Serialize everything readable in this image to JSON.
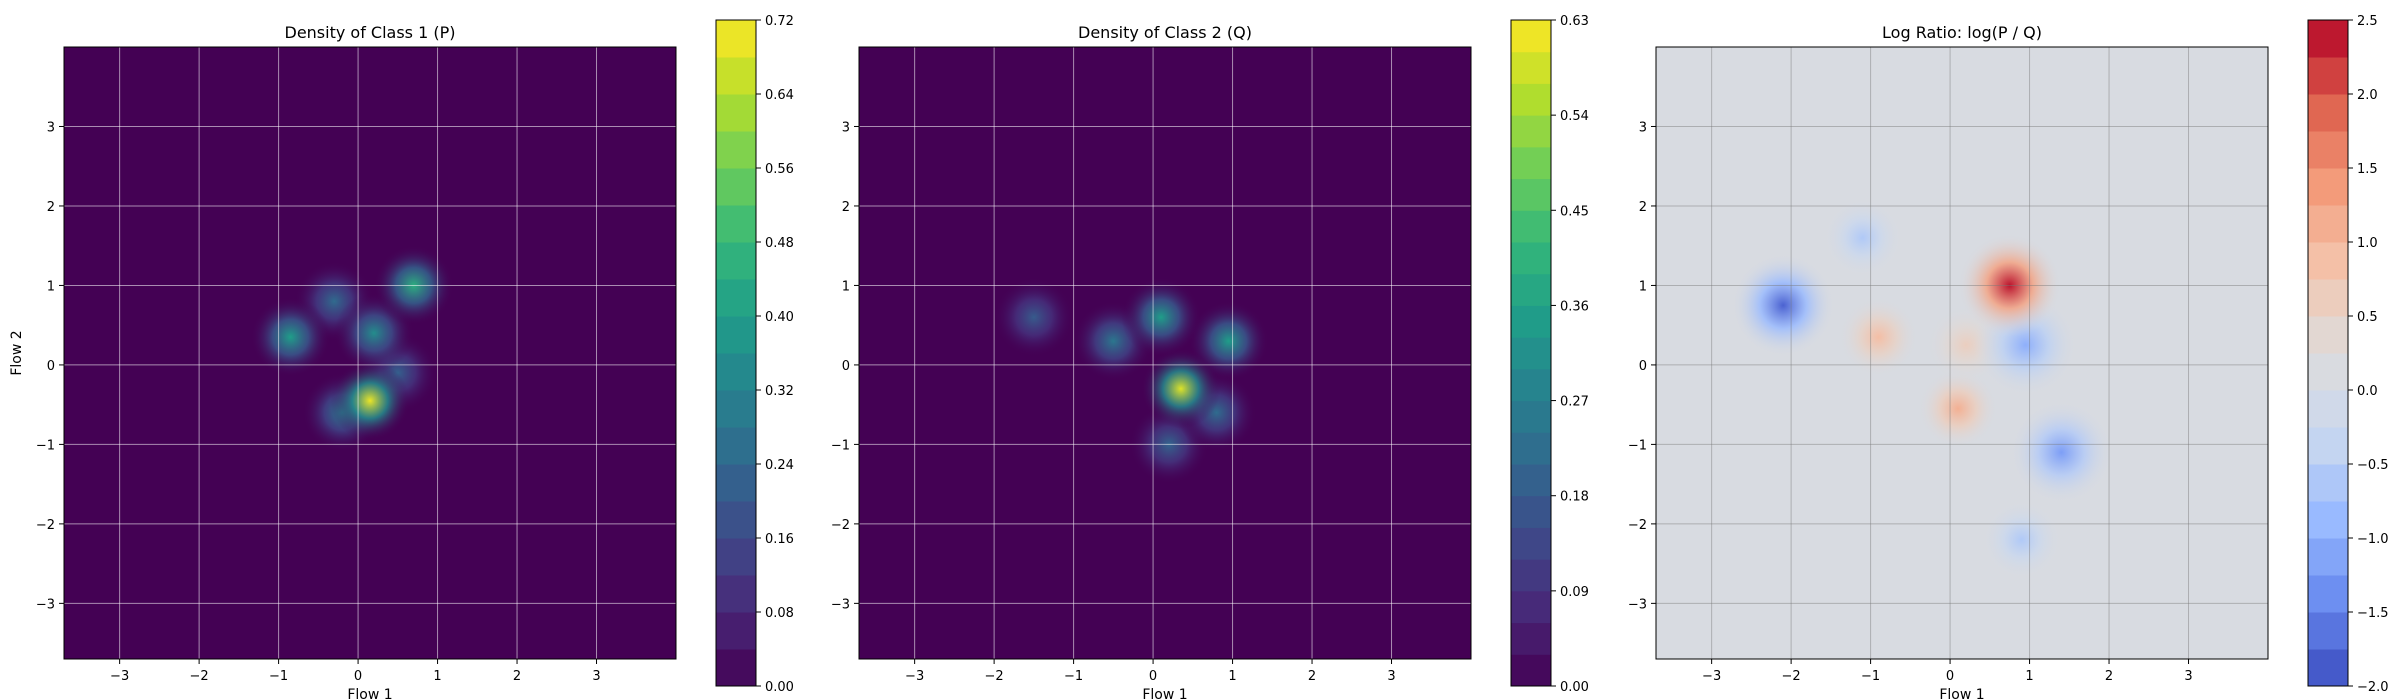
{
  "chart_data": [
    {
      "type": "heatmap",
      "title": "Density of Class 1 (P)",
      "xlabel": "Flow 1",
      "ylabel": "Flow 2",
      "xlim": [
        -3.7,
        4.0
      ],
      "ylim": [
        -3.7,
        4.0
      ],
      "xticks": [
        -3,
        -2,
        -1,
        0,
        1,
        2,
        3
      ],
      "yticks": [
        -3,
        -2,
        -1,
        0,
        1,
        2,
        3
      ],
      "grid": true,
      "colormap": "viridis",
      "colorbar": {
        "min": 0.0,
        "max": 0.72,
        "levels": 18,
        "ticks": [
          0.0,
          0.08,
          0.16,
          0.24,
          0.32,
          0.4,
          0.48,
          0.56,
          0.64,
          0.72
        ]
      },
      "background_value": 0.0,
      "peaks": [
        {
          "x": 0.15,
          "y": -0.45,
          "value": 0.7
        },
        {
          "x": 0.7,
          "y": 1.0,
          "value": 0.45
        },
        {
          "x": -0.85,
          "y": 0.35,
          "value": 0.4
        },
        {
          "x": 0.2,
          "y": 0.4,
          "value": 0.35
        },
        {
          "x": -0.3,
          "y": 0.8,
          "value": 0.25
        },
        {
          "x": -0.2,
          "y": -0.6,
          "value": 0.3
        },
        {
          "x": 0.5,
          "y": -0.1,
          "value": 0.22
        }
      ]
    },
    {
      "type": "heatmap",
      "title": "Density of Class 2 (Q)",
      "xlabel": "Flow 1",
      "ylabel": "",
      "xlim": [
        -3.7,
        4.0
      ],
      "ylim": [
        -3.7,
        4.0
      ],
      "xticks": [
        -3,
        -2,
        -1,
        0,
        1,
        2,
        3
      ],
      "yticks": [
        -3,
        -2,
        -1,
        0,
        1,
        2,
        3
      ],
      "grid": true,
      "colormap": "viridis",
      "colorbar": {
        "min": 0.0,
        "max": 0.63,
        "levels": 21,
        "ticks": [
          0.0,
          0.09,
          0.18,
          0.27,
          0.36,
          0.45,
          0.54,
          0.63
        ]
      },
      "background_value": 0.0,
      "peaks": [
        {
          "x": 0.35,
          "y": -0.3,
          "value": 0.6
        },
        {
          "x": 0.95,
          "y": 0.3,
          "value": 0.35
        },
        {
          "x": 0.1,
          "y": 0.6,
          "value": 0.35
        },
        {
          "x": -0.5,
          "y": 0.3,
          "value": 0.25
        },
        {
          "x": -1.5,
          "y": 0.6,
          "value": 0.18
        },
        {
          "x": 0.2,
          "y": -1.0,
          "value": 0.2
        },
        {
          "x": 0.8,
          "y": -0.6,
          "value": 0.22
        }
      ]
    },
    {
      "type": "heatmap",
      "title": "Log Ratio: log(P / Q)",
      "xlabel": "Flow 1",
      "ylabel": "",
      "xlim": [
        -3.7,
        4.0
      ],
      "ylim": [
        -3.7,
        4.0
      ],
      "xticks": [
        -3,
        -2,
        -1,
        0,
        1,
        2,
        3
      ],
      "yticks": [
        -3,
        -2,
        -1,
        0,
        1,
        2,
        3
      ],
      "grid": true,
      "colormap": "coolwarm",
      "colorbar": {
        "min": -2.0,
        "max": 2.5,
        "levels": 18,
        "ticks": [
          -2.0,
          -1.5,
          -1.0,
          -0.5,
          0.0,
          0.5,
          1.0,
          1.5,
          2.0,
          2.5
        ]
      },
      "background_value": 0.1,
      "peaks": [
        {
          "x": 0.75,
          "y": 1.0,
          "value": 2.4
        },
        {
          "x": 0.1,
          "y": -0.55,
          "value": 1.1
        },
        {
          "x": -0.9,
          "y": 0.35,
          "value": 0.9
        },
        {
          "x": 0.2,
          "y": 0.25,
          "value": 0.6
        },
        {
          "x": -2.1,
          "y": 0.75,
          "value": -1.8
        },
        {
          "x": 1.4,
          "y": -1.1,
          "value": -1.2
        },
        {
          "x": 0.95,
          "y": 0.25,
          "value": -1.0
        },
        {
          "x": -1.1,
          "y": 1.6,
          "value": -0.6
        },
        {
          "x": 0.9,
          "y": -2.2,
          "value": -0.6
        }
      ]
    }
  ],
  "colors": {
    "viridis": [
      "#440154",
      "#482878",
      "#3e4989",
      "#31688e",
      "#26828e",
      "#1f9e89",
      "#35b779",
      "#6ece58",
      "#b5de2b",
      "#fde725"
    ],
    "coolwarm": [
      "#3b4cc0",
      "#688aef",
      "#99baff",
      "#c9d8ef",
      "#dddcdc",
      "#f4c5ad",
      "#f39b7a",
      "#de604d",
      "#b40426"
    ]
  }
}
